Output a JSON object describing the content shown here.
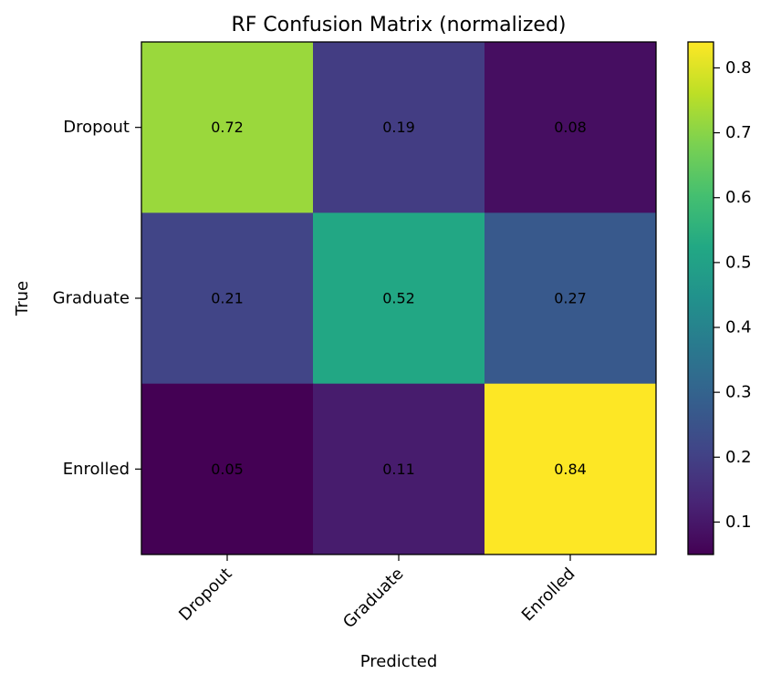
{
  "chart_data": {
    "type": "heatmap",
    "title": "RF Confusion Matrix (normalized)",
    "xlabel": "Predicted",
    "ylabel": "True",
    "x_categories": [
      "Dropout",
      "Graduate",
      "Enrolled"
    ],
    "y_categories": [
      "Dropout",
      "Graduate",
      "Enrolled"
    ],
    "values": [
      [
        0.72,
        0.19,
        0.08
      ],
      [
        0.21,
        0.52,
        0.27
      ],
      [
        0.05,
        0.11,
        0.84
      ]
    ],
    "value_labels": [
      [
        "0.72",
        "0.19",
        "0.08"
      ],
      [
        "0.21",
        "0.52",
        "0.27"
      ],
      [
        "0.05",
        "0.11",
        "0.84"
      ]
    ],
    "colormap": "viridis",
    "vmin": 0.05,
    "vmax": 0.84,
    "colorbar_ticks": [
      0.1,
      0.2,
      0.3,
      0.4,
      0.5,
      0.6,
      0.7,
      0.8
    ],
    "colorbar_tick_labels": [
      "0.1",
      "0.2",
      "0.3",
      "0.4",
      "0.5",
      "0.6",
      "0.7",
      "0.8"
    ]
  }
}
